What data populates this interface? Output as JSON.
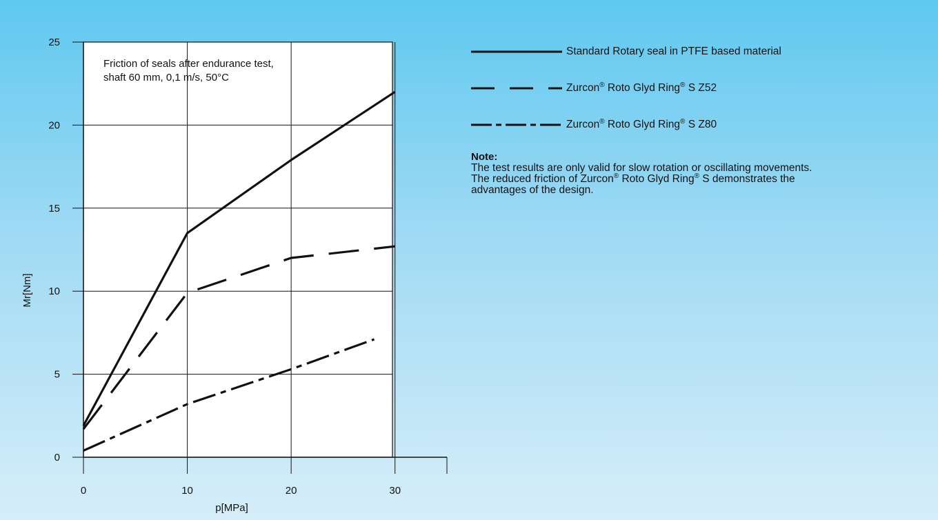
{
  "chart_data": {
    "type": "line",
    "xlabel": "p[MPa]",
    "ylabel": "Mr[Nm]",
    "xlim": [
      0,
      35
    ],
    "ylim": [
      0,
      25
    ],
    "x_ticks": [
      0,
      10,
      20,
      30
    ],
    "y_ticks": [
      0,
      5,
      10,
      15,
      20,
      25
    ],
    "grid": true,
    "annotation": [
      "Friction of seals after endurance test,",
      "shaft 60 mm, 0,1 m/s, 50°C"
    ],
    "legend_position": "right",
    "series": [
      {
        "name": "Standard Rotary seal in PTFE based material",
        "line_style": "solid",
        "x": [
          0,
          10,
          20,
          30
        ],
        "y": [
          1.9,
          13.5,
          17.9,
          22.0
        ]
      },
      {
        "name": "Zurcon® Roto Glyd Ring® S Z52",
        "line_style": "dashed",
        "x": [
          0,
          10,
          20,
          30
        ],
        "y": [
          1.7,
          9.9,
          12.0,
          12.7
        ]
      },
      {
        "name": "Zurcon® Roto Glyd Ring® S Z80",
        "line_style": "dash-dot",
        "x": [
          0,
          10,
          20,
          28
        ],
        "y": [
          0.4,
          3.2,
          5.3,
          7.1
        ]
      }
    ]
  },
  "legend": [
    {
      "prefix": "Standard Rotary seal in PTFE based material",
      "style": "solid"
    },
    {
      "prefix": "Zurcon",
      "mid": " Roto Glyd Ring",
      "suffix": " S Z52",
      "style": "dashed"
    },
    {
      "prefix": "Zurcon",
      "mid": " Roto Glyd Ring",
      "suffix": " S Z80",
      "style": "dash-dot"
    }
  ],
  "registered_mark": "®",
  "note": {
    "title": "Note:",
    "line1": "The test results are only valid for slow rotation or oscillating movements.",
    "line2_a": "The reduced friction of Zurcon",
    "line2_b": " Roto Glyd Ring",
    "line2_c": " S demonstrates the",
    "line3": "advantages of the design."
  }
}
